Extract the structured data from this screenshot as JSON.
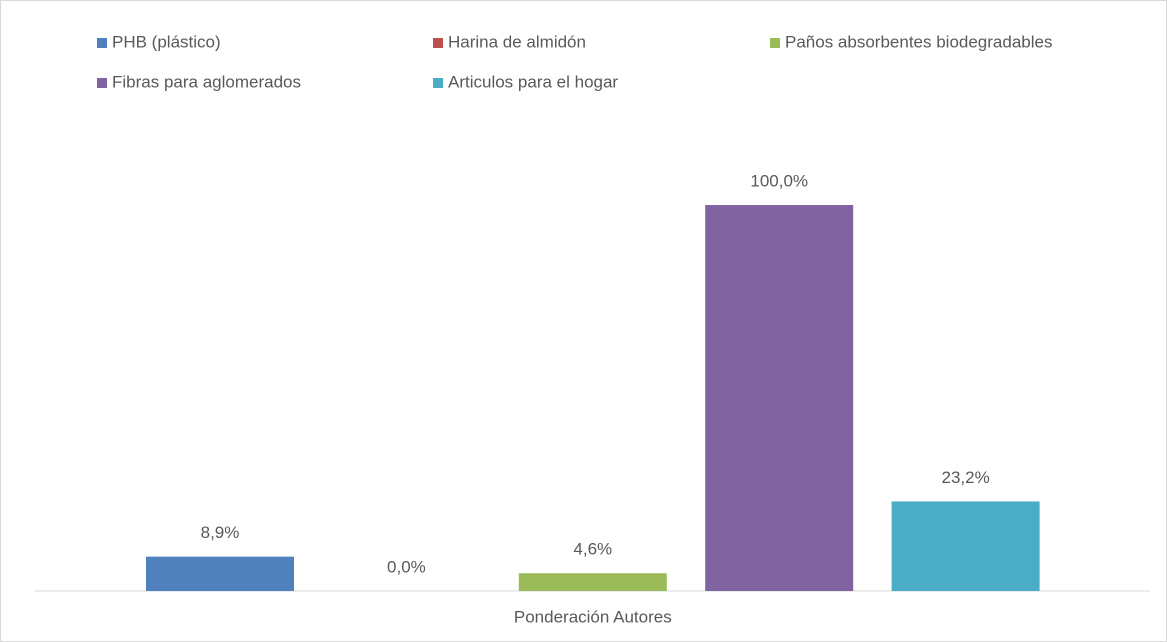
{
  "chart_data": {
    "type": "bar",
    "categories": [
      "Ponderación Autores"
    ],
    "series": [
      {
        "name": "PHB (plástico)",
        "color": "#4f81bd",
        "values": [
          8.9
        ],
        "value_labels": [
          "8,9%"
        ]
      },
      {
        "name": "Harina de almidón",
        "color": "#c0504d",
        "values": [
          0
        ],
        "value_labels": [
          "0,0%"
        ]
      },
      {
        "name": "Paños absorbentes biodegradables",
        "color": "#9bbb59",
        "values": [
          4.6
        ],
        "value_labels": [
          "4,6%"
        ]
      },
      {
        "name": "Fibras para aglomerados",
        "color": "#8064a2",
        "values": [
          100
        ],
        "value_labels": [
          "100,0%"
        ]
      },
      {
        "name": "Articulos para el hogar",
        "color": "#4bacc6",
        "values": [
          23.2
        ],
        "value_labels": [
          "23,2%"
        ]
      }
    ],
    "ylim": [
      0,
      100
    ]
  }
}
